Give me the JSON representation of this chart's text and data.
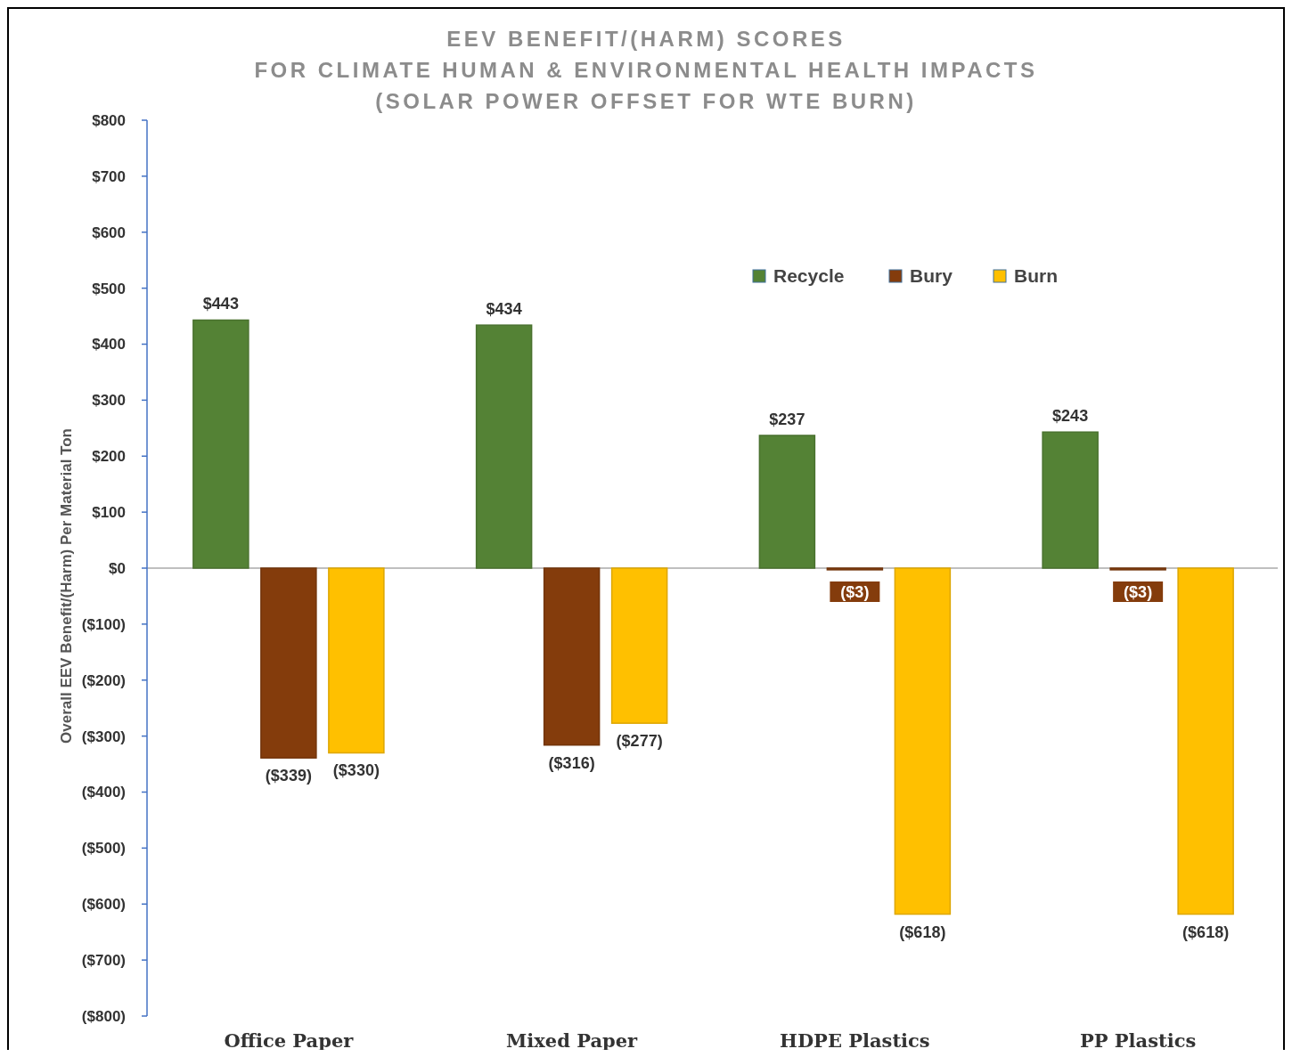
{
  "chart_data": {
    "type": "bar",
    "title": "EEV BENEFIT/(HARM) SCORES\nFOR CLIMATE HUMAN & ENVIRONMENTAL HEALTH IMPACTS\n(SOLAR POWER OFFSET FOR WTE BURN)",
    "ylabel": "Overall EEV Benefit/(Harm) Per Material Ton",
    "categories": [
      "Office Paper",
      "Mixed Paper",
      "HDPE Plastics",
      "PP Plastics"
    ],
    "series": [
      {
        "name": "Recycle",
        "color": "#548235",
        "values": [
          443,
          434,
          237,
          243
        ],
        "value_labels": [
          "$443",
          "$434",
          "$237",
          "$243"
        ]
      },
      {
        "name": "Bury",
        "color": "#843c0c",
        "values": [
          -339,
          -316,
          -3,
          -3
        ],
        "value_labels": [
          "($339)",
          "($316)",
          "($3)",
          "($3)"
        ]
      },
      {
        "name": "Burn",
        "color": "#ffc000",
        "values": [
          -330,
          -277,
          -618,
          -618
        ],
        "value_labels": [
          "($330)",
          "($277)",
          "($618)",
          "($618)"
        ]
      }
    ],
    "ylim": [
      -800,
      800
    ],
    "yticks": [
      {
        "value": 800,
        "label": "$800"
      },
      {
        "value": 700,
        "label": "$700"
      },
      {
        "value": 600,
        "label": "$600"
      },
      {
        "value": 500,
        "label": "$500"
      },
      {
        "value": 400,
        "label": "$400"
      },
      {
        "value": 300,
        "label": "$300"
      },
      {
        "value": 200,
        "label": "$200"
      },
      {
        "value": 100,
        "label": "$100"
      },
      {
        "value": 0,
        "label": "$0"
      },
      {
        "value": -100,
        "label": "($100)"
      },
      {
        "value": -200,
        "label": "($200)"
      },
      {
        "value": -300,
        "label": "($300)"
      },
      {
        "value": -400,
        "label": "($400)"
      },
      {
        "value": -500,
        "label": "($500)"
      },
      {
        "value": -600,
        "label": "($600)"
      },
      {
        "value": -700,
        "label": "($700)"
      },
      {
        "value": -800,
        "label": "($800)"
      }
    ],
    "legend": "top right"
  }
}
